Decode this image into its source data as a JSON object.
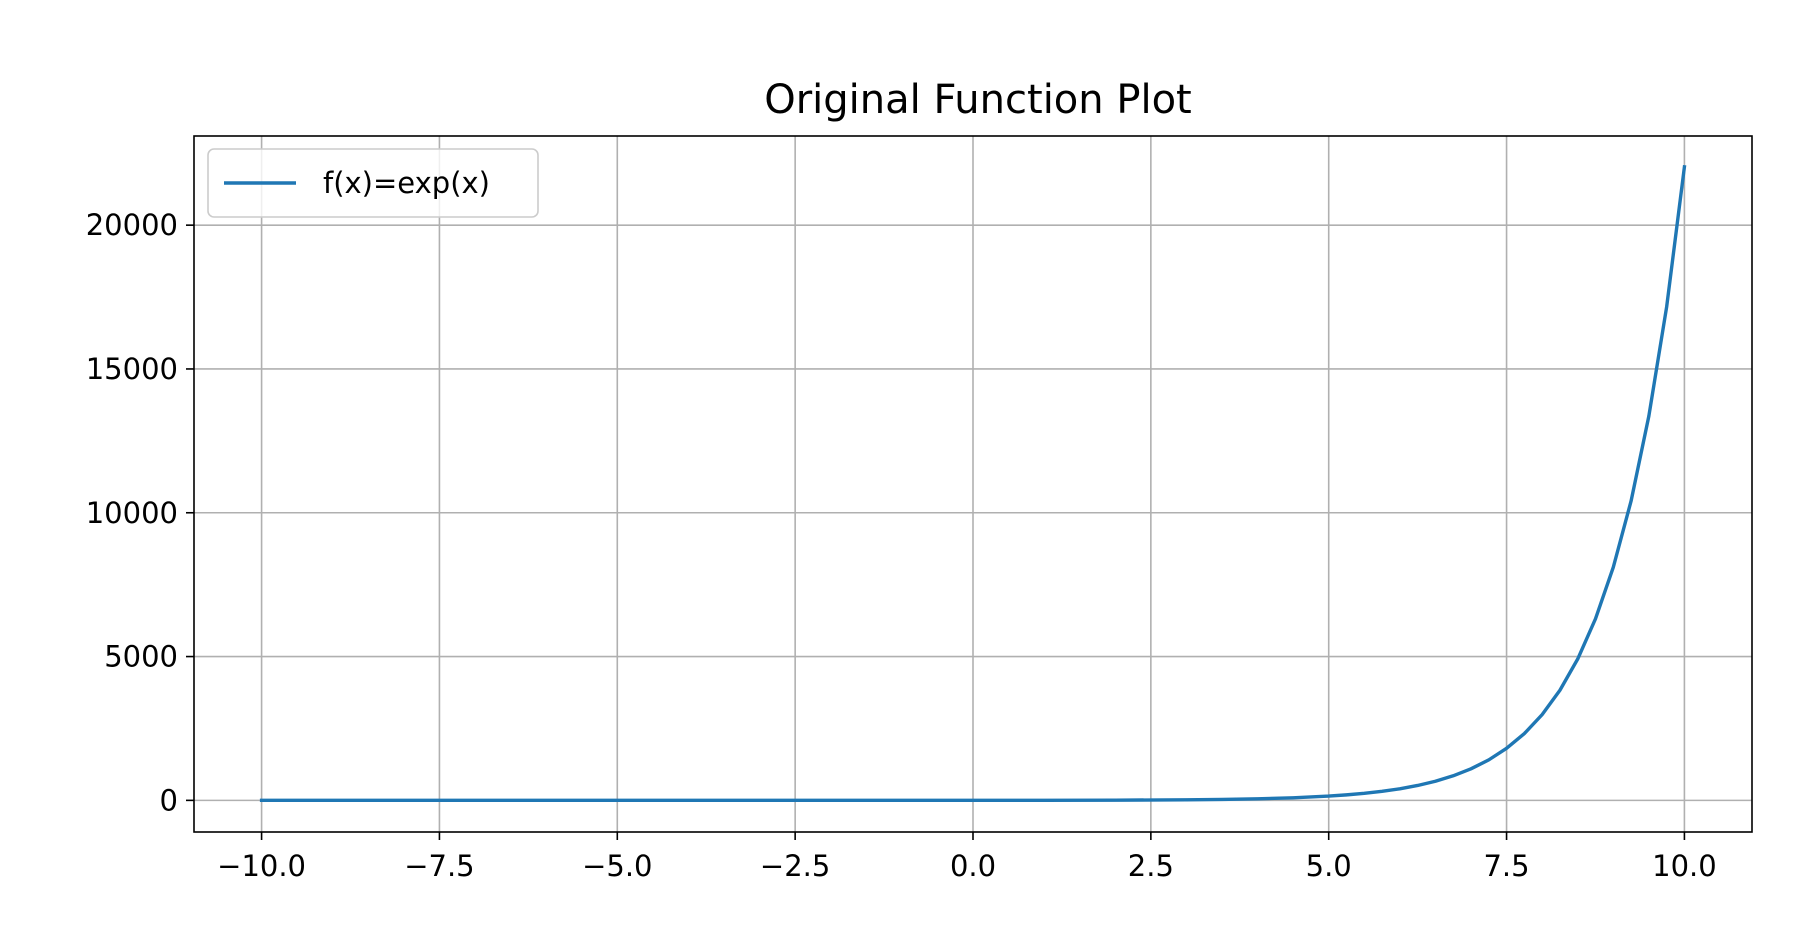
{
  "chart_data": {
    "type": "line",
    "title": "Original Function Plot",
    "xlabel": "",
    "ylabel": "",
    "xlim": [
      -10.95,
      10.95
    ],
    "ylim": [
      -1100,
      23100
    ],
    "grid": true,
    "legend_position": "upper-left",
    "x_ticks": [
      -10.0,
      -7.5,
      -5.0,
      -2.5,
      0.0,
      2.5,
      5.0,
      7.5,
      10.0
    ],
    "x_tick_labels": [
      "−10.0",
      "−7.5",
      "−5.0",
      "−2.5",
      "0.0",
      "2.5",
      "5.0",
      "7.5",
      "10.0"
    ],
    "y_ticks": [
      0,
      5000,
      10000,
      15000,
      20000
    ],
    "y_tick_labels": [
      "0",
      "5000",
      "10000",
      "15000",
      "20000"
    ],
    "series": [
      {
        "name": "f(x)=exp(x)",
        "color": "#1f77b4",
        "x": [
          -10,
          -9,
          -8,
          -7,
          -6,
          -5,
          -4,
          -3,
          -2,
          -1,
          0,
          1,
          2,
          3,
          3.5,
          4,
          4.5,
          5,
          5.25,
          5.5,
          5.75,
          6,
          6.25,
          6.5,
          6.75,
          7,
          7.25,
          7.5,
          7.75,
          8,
          8.25,
          8.5,
          8.75,
          9,
          9.25,
          9.5,
          9.75,
          10
        ],
        "y": [
          0,
          0,
          0,
          0,
          0,
          0,
          0,
          0,
          0,
          0,
          1,
          3,
          7,
          20,
          33,
          55,
          90,
          148,
          191,
          245,
          314,
          403,
          518,
          665,
          854,
          1097,
          1408,
          1808,
          2322,
          2981,
          3828,
          4915,
          6311,
          8103,
          10405,
          13360,
          17154,
          22026
        ]
      }
    ]
  }
}
